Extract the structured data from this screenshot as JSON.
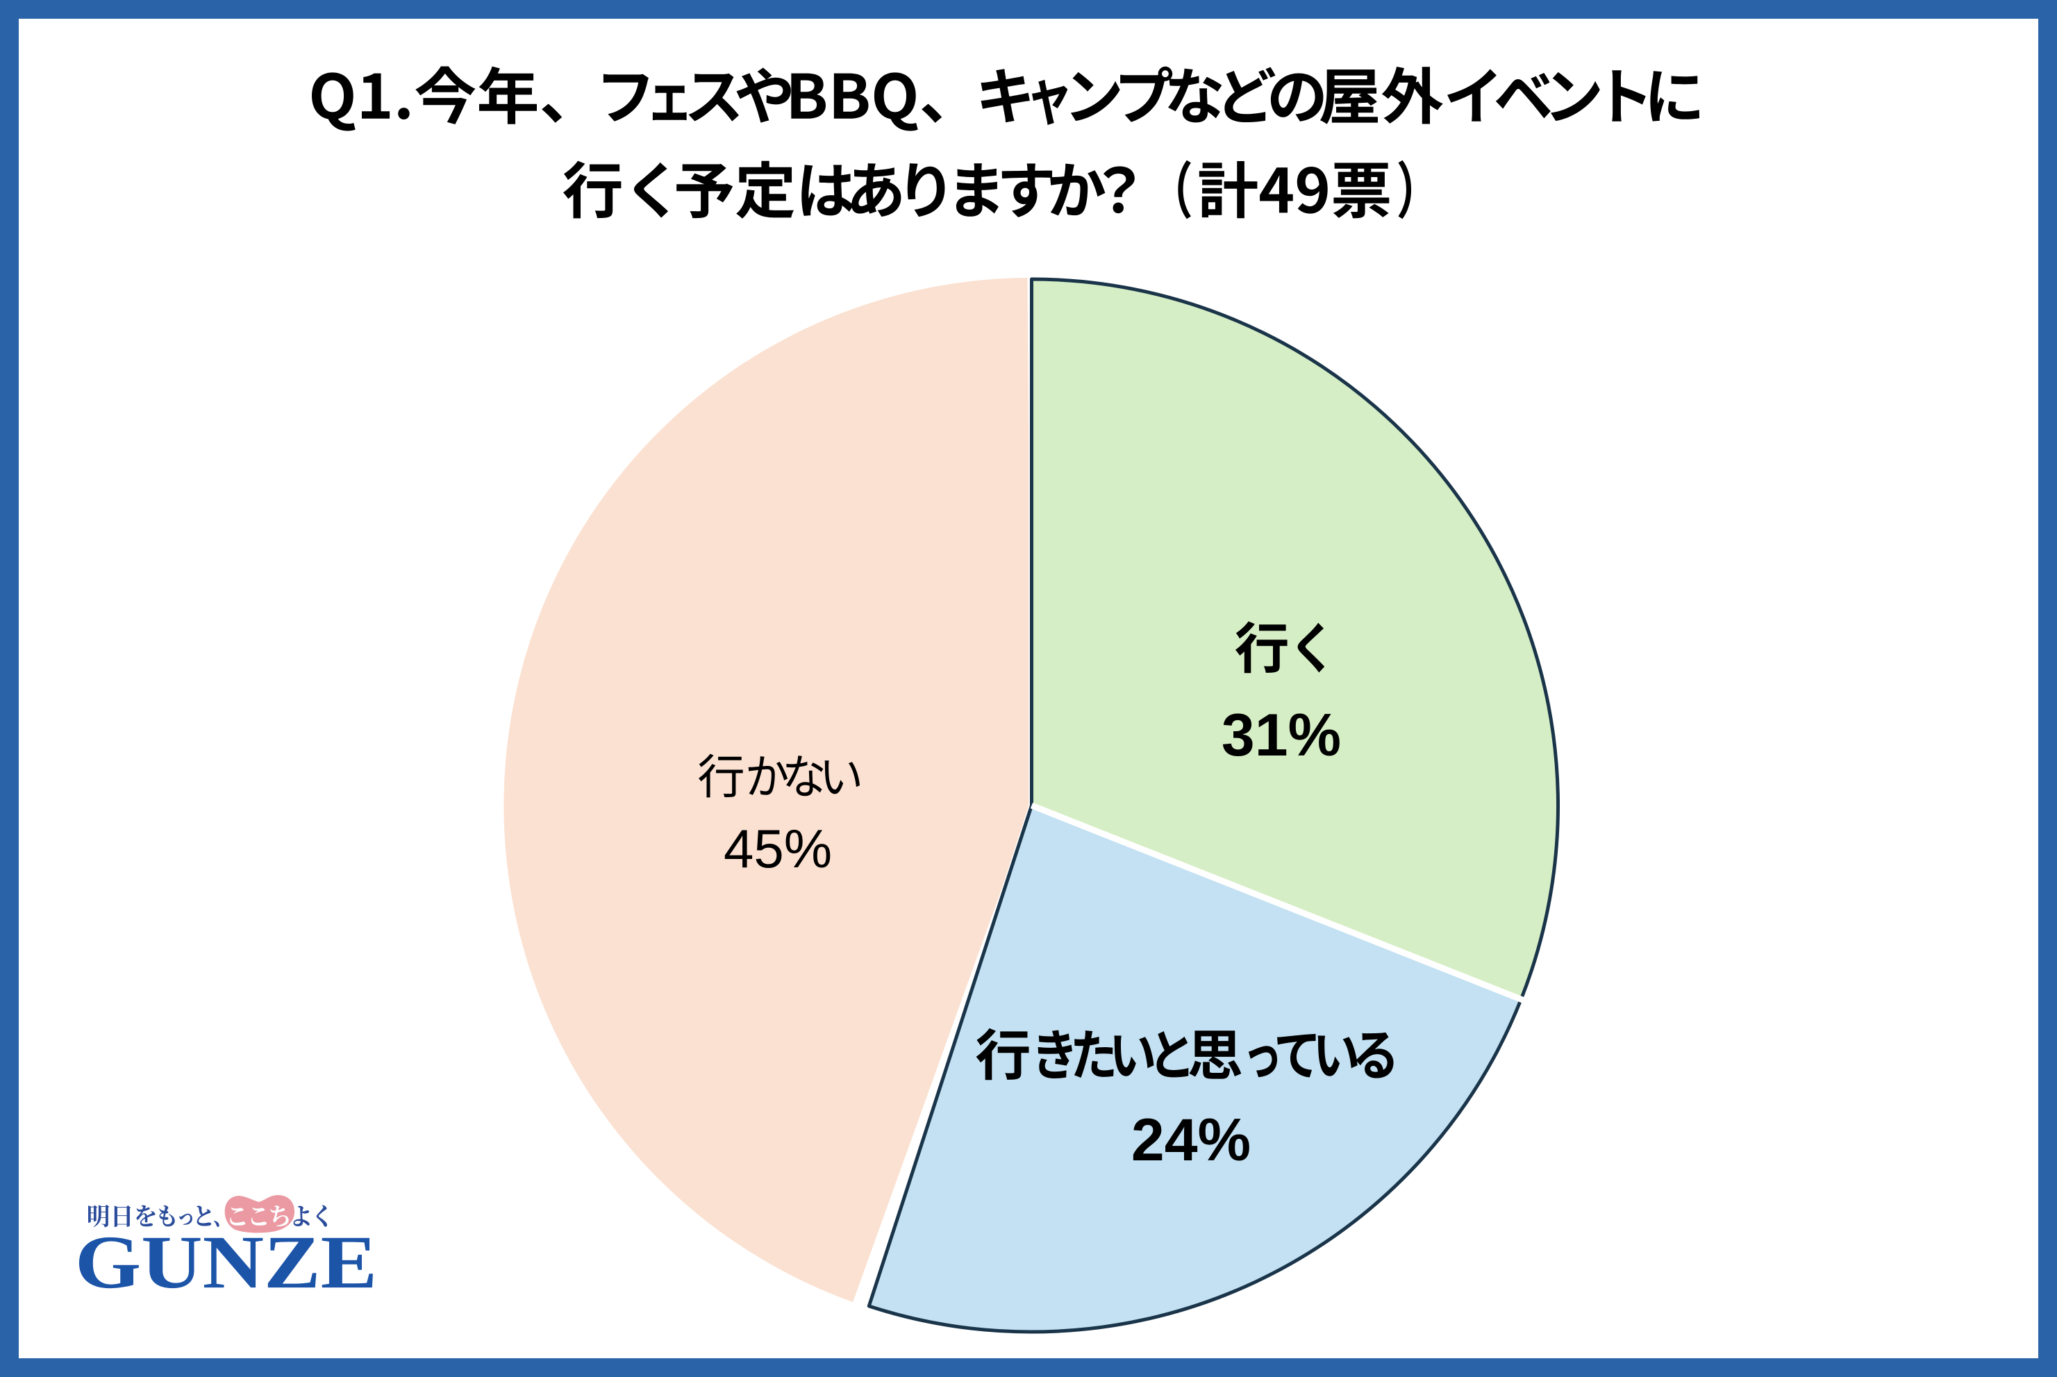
{
  "page": {
    "background": "#ffffff",
    "frame_color": "#2B63A8"
  },
  "title": {
    "line1": "Q1.今年、フェスやBBQ、キャンプなどの屋外イベントに",
    "line2": "行く予定はありますか？　（計49票）",
    "color": "#000000"
  },
  "chart_data": {
    "type": "pie",
    "title": "Q1.今年、フェスやBBQ、キャンプなどの屋外イベントに行く予定はありますか？（計49票）",
    "total_votes": 49,
    "start_angle_deg": 0,
    "direction": "clockwise",
    "categories": [
      "行く",
      "行きたいと思っている",
      "行かない"
    ],
    "values": [
      31,
      24,
      45
    ],
    "series": [
      {
        "label": "行く",
        "value": 31,
        "value_label": "31%",
        "color": "#D6EEC5",
        "label_style": "bold"
      },
      {
        "label": "行きたいと思っている",
        "value": 24,
        "value_label": "24%",
        "color": "#C3E1F2",
        "label_style": "bold"
      },
      {
        "label": "行かない",
        "value": 45,
        "value_label": "45%",
        "color": "#FBE1D1",
        "label_style": "regular"
      }
    ],
    "outline_color": "#1A3449",
    "divider_color": "#FFFFFF",
    "label_color": "#000000",
    "legend": "none",
    "labels_inside": true
  },
  "logo": {
    "tagline_prefix": "明日をもっと、",
    "tagline_highlight": "ここち",
    "tagline_suffix": "よく",
    "tagline": "明日をもっと、ここちよく",
    "wordmark": "GUNZE",
    "wordmark_color": "#1C54A8",
    "tagline_color": "#2B4C9B",
    "highlight_text_color": "#FFFFFF",
    "highlight_badge_color": "#EB9AA3"
  }
}
